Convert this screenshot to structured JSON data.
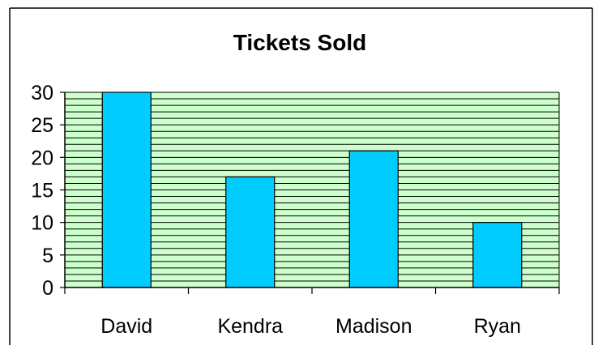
{
  "chart_data": {
    "type": "bar",
    "title": "Tickets Sold",
    "categories": [
      "David",
      "Kendra",
      "Madison",
      "Ryan"
    ],
    "values": [
      30,
      17,
      21,
      10
    ],
    "xlabel": "",
    "ylabel": "",
    "ylim": [
      0,
      30
    ],
    "yticks": [
      "0",
      "5",
      "10",
      "15",
      "20",
      "25",
      "30"
    ],
    "minor_grid_step": 1,
    "grid": true,
    "legend": "none",
    "colors": {
      "bar": "#00ccff",
      "plot_background": "#ccffcc",
      "gridline": "#000000",
      "axis": "#000000",
      "frame": "#000000"
    }
  }
}
